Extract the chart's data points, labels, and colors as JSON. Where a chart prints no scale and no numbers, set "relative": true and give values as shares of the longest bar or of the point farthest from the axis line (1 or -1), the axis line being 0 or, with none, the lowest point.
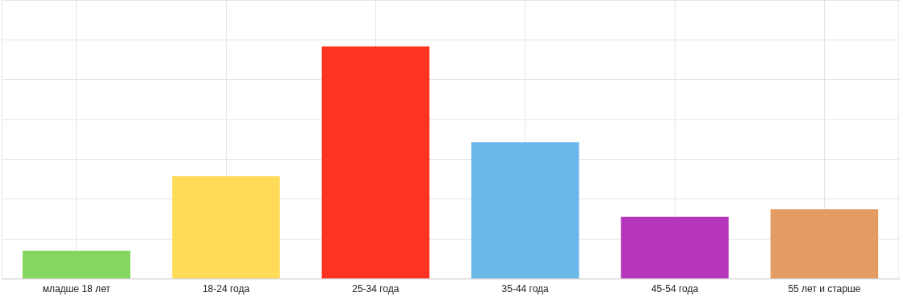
{
  "chart_data": {
    "type": "bar",
    "relative": true,
    "grid": true,
    "legend": false,
    "categories": [
      "младше 18 лет",
      "18-24 года",
      "25-34 года",
      "35-44 года",
      "45-54 года",
      "55 лет и старше"
    ],
    "values": [
      0.121,
      0.442,
      1,
      0.588,
      0.267,
      0.3
    ],
    "colors": [
      "#85d65f",
      "#ffdb58",
      "#ff3322",
      "#6bb7ea",
      "#b536b9",
      "#e59c63"
    ]
  }
}
